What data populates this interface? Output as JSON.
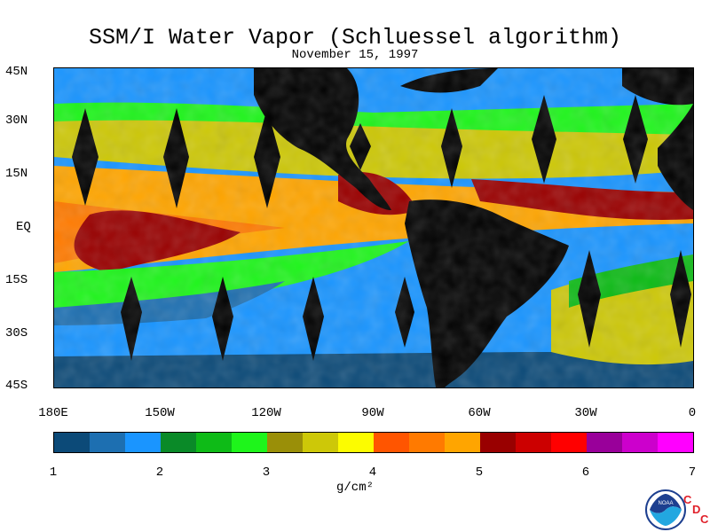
{
  "title": "SSM/I Water Vapor (Schluessel algorithm)",
  "subtitle": "November 15, 1997",
  "latitude_labels": [
    "45N",
    "30N",
    "15N",
    "EQ",
    "15S",
    "30S",
    "45S"
  ],
  "longitude_labels": [
    "180E",
    "150W",
    "120W",
    "90W",
    "60W",
    "30W",
    "0"
  ],
  "colorbar": {
    "colors": [
      "#0c4a78",
      "#1d6fb1",
      "#1a95ff",
      "#0a8a28",
      "#0ebb17",
      "#1ef51b",
      "#9a8f08",
      "#cdc808",
      "#fcfc00",
      "#ff5500",
      "#ff7a00",
      "#ffa500",
      "#990000",
      "#cc0000",
      "#ff0000",
      "#99009a",
      "#cc00cc",
      "#ff00ff"
    ],
    "tick_labels": [
      "1",
      "2",
      "3",
      "4",
      "5",
      "6",
      "7"
    ],
    "units": "g/cm²"
  },
  "logo": {
    "noaa_label": "NOAA",
    "cdc_letters": [
      "C",
      "D",
      "C"
    ]
  }
}
